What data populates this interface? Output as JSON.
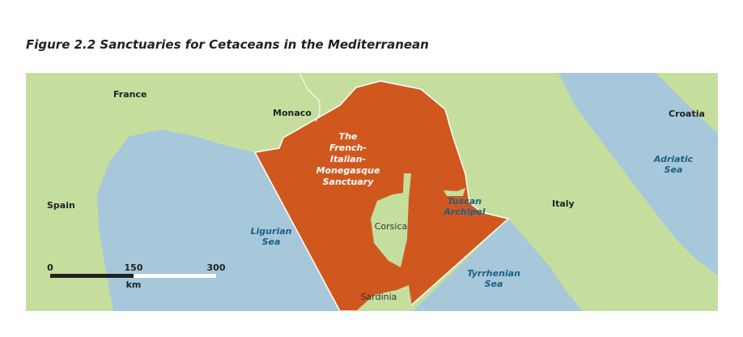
{
  "title": "Figure 2.2   Sanctuaries for Cetaceans in the Mediterranean",
  "colors": {
    "land": "#c5de9e",
    "sea": "#a6c8da",
    "sanctuary": "#d0581f",
    "sea_label": "#1e5f86"
  },
  "labels": {
    "france": "France",
    "monaco": "Monaco",
    "spain": "Spain",
    "italy": "Italy",
    "croatia": "Croatia",
    "ligurian_1": "Ligurian",
    "ligurian_2": "Sea",
    "adriatic_1": "Adriatic",
    "adriatic_2": "Sea",
    "tyrrhenian_1": "Tyrrhenian",
    "tyrrhenian_2": "Sea",
    "sanctuary": [
      "The",
      "French-",
      "Italian-",
      "Monegasque",
      "Sanctuary"
    ],
    "corsica": "Corsica",
    "sardinia": "Sardinia",
    "tuscan_1": "Tuscan",
    "tuscan_2": "Archipel"
  },
  "scale_bar": {
    "ticks": [
      "0",
      "150",
      "300"
    ],
    "unit": "km"
  }
}
